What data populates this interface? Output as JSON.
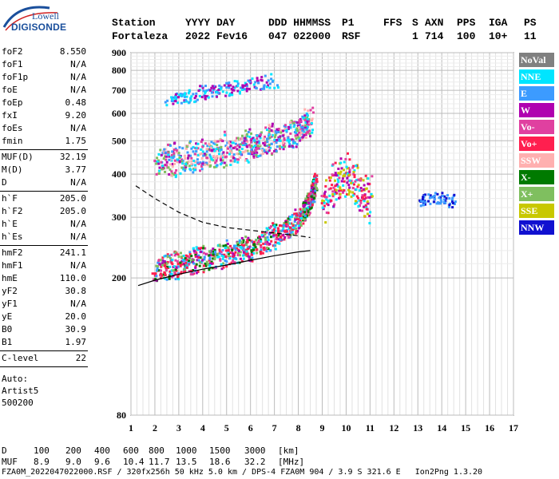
{
  "logo": {
    "line1": "Lowell",
    "line2": "DIGISONDE"
  },
  "header": {
    "row1": [
      "Station",
      "YYYY DAY",
      "DDD HHMMSS",
      "P1",
      "FFS",
      "S",
      "AXN",
      "PPS",
      "IGA",
      "PS"
    ],
    "row2": [
      "Fortaleza",
      "2022 Fev16",
      "047 022000",
      "RSF",
      "",
      "1",
      "714",
      "100",
      "10+",
      "11"
    ]
  },
  "params": [
    {
      "k": "foF2",
      "v": "8.550"
    },
    {
      "k": "foF1",
      "v": "N/A"
    },
    {
      "k": "foF1p",
      "v": "N/A"
    },
    {
      "k": "foE",
      "v": "N/A"
    },
    {
      "k": "foEp",
      "v": "0.48"
    },
    {
      "k": "fxI",
      "v": "9.20"
    },
    {
      "k": "foEs",
      "v": "N/A"
    },
    {
      "k": "fmin",
      "v": "1.75"
    },
    {
      "k": "MUF(D)",
      "v": "32.19"
    },
    {
      "k": "M(D)",
      "v": "3.77"
    },
    {
      "k": "D",
      "v": "N/A"
    },
    {
      "k": "h`F",
      "v": "205.0"
    },
    {
      "k": "h`F2",
      "v": "205.0"
    },
    {
      "k": "h`E",
      "v": "N/A"
    },
    {
      "k": "h`Es",
      "v": "N/A"
    },
    {
      "k": "hmF2",
      "v": "241.1"
    },
    {
      "k": "hmF1",
      "v": "N/A"
    },
    {
      "k": "hmE",
      "v": "110.0"
    },
    {
      "k": "yF2",
      "v": "30.8"
    },
    {
      "k": "yF1",
      "v": "N/A"
    },
    {
      "k": "yE",
      "v": "20.0"
    },
    {
      "k": "B0",
      "v": "30.9"
    },
    {
      "k": "B1",
      "v": "1.97"
    },
    {
      "k": "C-level",
      "v": "22"
    }
  ],
  "auto": {
    "l1": "Auto:",
    "l2": "Artist5",
    "l3": "500200"
  },
  "legend": [
    {
      "label": "NoVal",
      "color": "#808080"
    },
    {
      "label": "NNE",
      "color": "#00e5ff"
    },
    {
      "label": "E",
      "color": "#3c9bff"
    },
    {
      "label": "W",
      "color": "#b000b0"
    },
    {
      "label": "Vo-",
      "color": "#e040a0"
    },
    {
      "label": "Vo+",
      "color": "#ff1f4f"
    },
    {
      "label": "SSW",
      "color": "#ffb0b0"
    },
    {
      "label": "X-",
      "color": "#007a00"
    },
    {
      "label": "X+",
      "color": "#7fbf5f"
    },
    {
      "label": "SSE",
      "color": "#c8c800"
    },
    {
      "label": "NNW",
      "color": "#1010d0"
    }
  ],
  "footer": {
    "d_row": [
      "D",
      "100",
      "200",
      "400",
      "600",
      "800",
      "1000",
      "1500",
      "3000",
      "[km]"
    ],
    "muf_row": [
      "MUF",
      "8.9",
      "9.0",
      "9.6",
      "10.4",
      "11.7",
      "13.5",
      "18.6",
      "32.2",
      "[MHz]"
    ],
    "info": "FZA0M_2022047022000.RSF / 320fx256h 50 kHz 5.0 km / DPS-4 FZA0M 904 / 3.9 S 321.6 E   Ion2Png 1.3.20"
  },
  "chart_data": {
    "type": "scatter",
    "xlim": [
      1,
      17
    ],
    "ylim": [
      80,
      900
    ],
    "xticks": [
      "1",
      "2",
      "3",
      "4",
      "5",
      "6",
      "7",
      "8",
      "9",
      "10",
      "11",
      "12",
      "13",
      "14",
      "15",
      "16",
      "17"
    ],
    "yticks": [
      "80",
      "200",
      "300",
      "400",
      "500",
      "600",
      "700",
      "800",
      "900"
    ],
    "y_scale": "log",
    "grid": true,
    "traces": [
      {
        "name": "F-layer O trace",
        "x": [
          1.9,
          3,
          4,
          5,
          6,
          7,
          8,
          8.5,
          8.7
        ],
        "y": [
          205,
          215,
          220,
          228,
          240,
          258,
          290,
          330,
          380
        ]
      },
      {
        "name": "F-layer second hop",
        "x": [
          2,
          3,
          4,
          5,
          6,
          7,
          8,
          8.5
        ],
        "y": [
          420,
          430,
          440,
          455,
          470,
          490,
          520,
          560
        ]
      },
      {
        "name": "F-layer third hop",
        "x": [
          2.5,
          4,
          5.5,
          7
        ],
        "y": [
          650,
          680,
          710,
          740
        ]
      },
      {
        "name": "Es patch",
        "x": [
          13,
          13.5,
          14,
          14.5
        ],
        "y": [
          330,
          340,
          335,
          330
        ]
      }
    ],
    "profile_curve": {
      "x": [
        1.3,
        2,
        3,
        4,
        5,
        6,
        7,
        8,
        8.5
      ],
      "y": [
        190,
        197,
        205,
        212,
        218,
        225,
        232,
        238,
        240
      ]
    },
    "dashed_curve": {
      "x": [
        1.2,
        2,
        3,
        4,
        5,
        6,
        7,
        8,
        8.5
      ],
      "y": [
        370,
        340,
        310,
        290,
        280,
        275,
        270,
        265,
        262
      ]
    }
  }
}
